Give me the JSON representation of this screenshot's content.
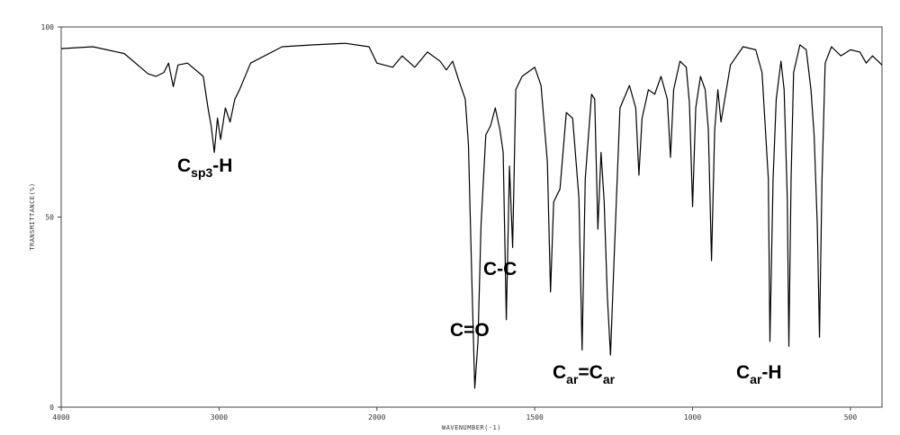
{
  "chart_data": {
    "type": "line",
    "x_label": "WAVENUMBER(-1)",
    "y_label": "TRANSMITTANCE(%)",
    "xlim": [
      4000,
      400
    ],
    "x_scale_break": 2000,
    "ylim": [
      0,
      100
    ],
    "xticks": [
      4000,
      3000,
      2000,
      1500,
      1000,
      500
    ],
    "yticks": [
      0,
      50,
      100
    ],
    "color": "#000000",
    "x": [
      4000,
      3800,
      3600,
      3450,
      3400,
      3350,
      3320,
      3290,
      3260,
      3200,
      3100,
      3070,
      3050,
      3030,
      3010,
      2990,
      2960,
      2930,
      2900,
      2870,
      2800,
      2600,
      2400,
      2200,
      2050,
      2000,
      1950,
      1920,
      1880,
      1840,
      1800,
      1780,
      1760,
      1740,
      1720,
      1710,
      1700,
      1690,
      1680,
      1670,
      1655,
      1640,
      1625,
      1610,
      1600,
      1590,
      1580,
      1570,
      1560,
      1540,
      1500,
      1480,
      1460,
      1450,
      1440,
      1420,
      1400,
      1380,
      1360,
      1350,
      1340,
      1320,
      1310,
      1300,
      1290,
      1280,
      1270,
      1260,
      1250,
      1230,
      1200,
      1180,
      1170,
      1160,
      1140,
      1120,
      1100,
      1080,
      1070,
      1060,
      1040,
      1020,
      1010,
      1000,
      990,
      975,
      960,
      950,
      940,
      930,
      920,
      910,
      880,
      840,
      800,
      780,
      760,
      755,
      745,
      735,
      720,
      710,
      700,
      695,
      688,
      680,
      660,
      640,
      625,
      615,
      605,
      598,
      590,
      580,
      560,
      530,
      500,
      470,
      450,
      430,
      400
    ],
    "values": [
      94.3,
      94.8,
      93,
      87.7,
      87,
      88,
      90.5,
      84.3,
      90,
      90.5,
      87,
      78.7,
      74,
      67,
      76,
      70.4,
      78.7,
      75,
      81,
      83.5,
      90.5,
      94.8,
      95.3,
      95.7,
      94.8,
      90.5,
      89.4,
      92.4,
      89.4,
      93.4,
      91,
      88.7,
      91,
      85.8,
      81,
      69,
      36,
      5,
      17,
      48,
      71.6,
      74,
      78.7,
      72.8,
      67,
      23,
      63.4,
      42,
      83.5,
      87,
      89.4,
      84.6,
      64.5,
      30.3,
      54,
      57.4,
      77.5,
      76,
      55,
      15,
      60,
      82.3,
      81,
      46.8,
      67,
      54,
      29,
      13.7,
      36,
      78.7,
      84.6,
      78.7,
      61,
      76,
      83.5,
      82.3,
      87,
      81,
      65.7,
      83.5,
      91,
      89.4,
      80,
      52.7,
      78.7,
      87,
      83.5,
      72.8,
      38.5,
      72.8,
      83.5,
      75,
      90,
      94.8,
      94,
      88,
      60,
      17.3,
      60,
      81,
      91,
      83.5,
      55,
      16,
      60,
      88,
      95.3,
      94,
      83.5,
      71.6,
      48,
      18.4,
      60,
      90.5,
      94.8,
      92.4,
      94,
      93.4,
      90.5,
      92.4,
      90
    ],
    "annotations": [
      {
        "parts": [
          {
            "text": "C"
          },
          {
            "text": "sp3",
            "sub": true
          },
          {
            "text": "-H"
          }
        ]
      },
      {
        "parts": [
          {
            "text": "C-C"
          }
        ]
      },
      {
        "parts": [
          {
            "text": "C=O"
          }
        ]
      },
      {
        "parts": [
          {
            "text": "C"
          },
          {
            "text": "ar",
            "sub": true
          },
          {
            "text": "=C"
          },
          {
            "text": "ar",
            "sub": true
          }
        ]
      },
      {
        "parts": [
          {
            "text": "C"
          },
          {
            "text": "ar",
            "sub": true
          },
          {
            "text": "-H"
          }
        ]
      }
    ]
  }
}
